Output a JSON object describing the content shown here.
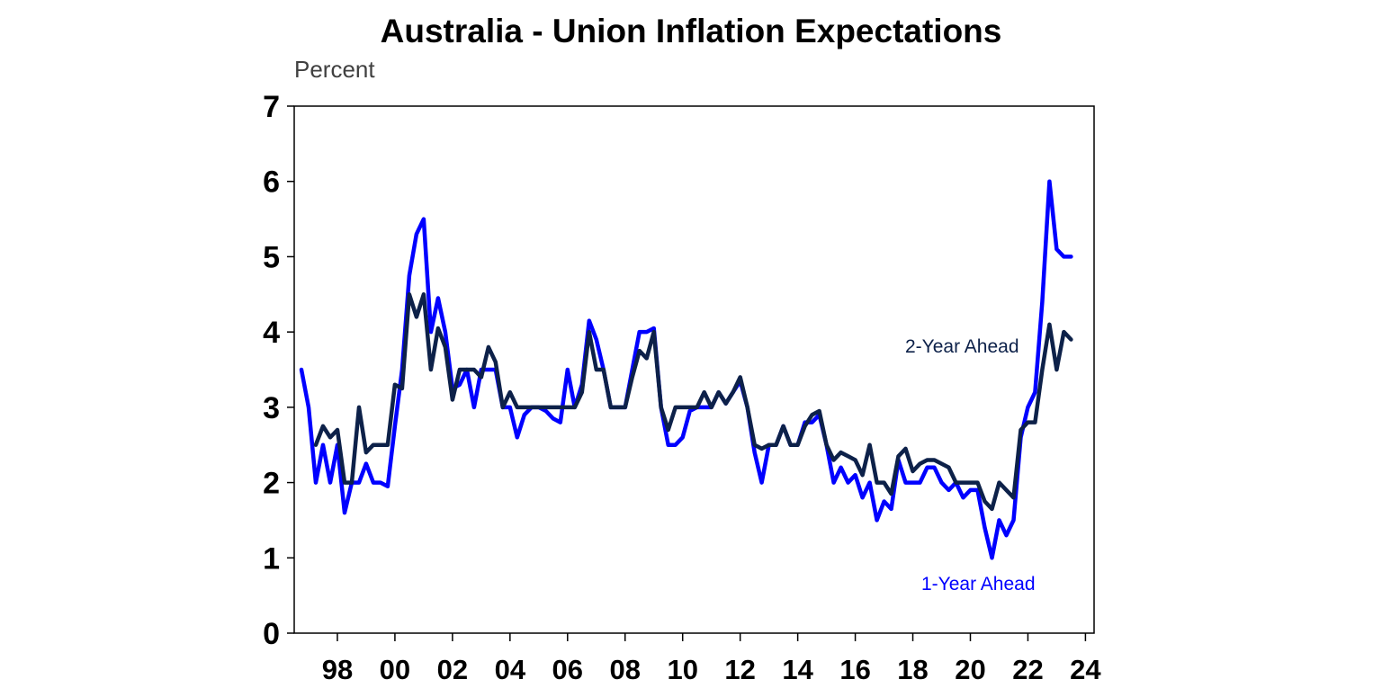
{
  "chart_data": {
    "type": "line",
    "title": "Australia - Union Inflation Expectations",
    "y_unit": "Percent",
    "xlabel": "",
    "ylabel": "",
    "xlim": [
      1996.5,
      2024.3
    ],
    "ylim": [
      0,
      7
    ],
    "y_ticks": [
      0,
      1,
      2,
      3,
      4,
      5,
      6,
      7
    ],
    "x_ticks": [
      {
        "value": 1998,
        "label": "98"
      },
      {
        "value": 2000,
        "label": "00"
      },
      {
        "value": 2002,
        "label": "02"
      },
      {
        "value": 2004,
        "label": "04"
      },
      {
        "value": 2006,
        "label": "06"
      },
      {
        "value": 2008,
        "label": "08"
      },
      {
        "value": 2010,
        "label": "10"
      },
      {
        "value": 2012,
        "label": "12"
      },
      {
        "value": 2014,
        "label": "14"
      },
      {
        "value": 2016,
        "label": "16"
      },
      {
        "value": 2018,
        "label": "18"
      },
      {
        "value": 2020,
        "label": "20"
      },
      {
        "value": 2022,
        "label": "22"
      },
      {
        "value": 2024,
        "label": "24"
      }
    ],
    "grid": false,
    "series": [
      {
        "name": "1-Year Ahead",
        "color": "#0000FF",
        "points": [
          [
            1996.75,
            3.5
          ],
          [
            1997.0,
            3.0
          ],
          [
            1997.25,
            2.0
          ],
          [
            1997.5,
            2.5
          ],
          [
            1997.75,
            2.0
          ],
          [
            1998.0,
            2.5
          ],
          [
            1998.25,
            1.6
          ],
          [
            1998.5,
            2.0
          ],
          [
            1998.75,
            2.0
          ],
          [
            1999.0,
            2.25
          ],
          [
            1999.25,
            2.0
          ],
          [
            1999.5,
            2.0
          ],
          [
            1999.75,
            1.95
          ],
          [
            2000.0,
            2.75
          ],
          [
            2000.25,
            3.5
          ],
          [
            2000.5,
            4.75
          ],
          [
            2000.75,
            5.3
          ],
          [
            2001.0,
            5.5
          ],
          [
            2001.25,
            4.0
          ],
          [
            2001.5,
            4.45
          ],
          [
            2001.75,
            4.0
          ],
          [
            2002.0,
            3.25
          ],
          [
            2002.25,
            3.3
          ],
          [
            2002.5,
            3.5
          ],
          [
            2002.75,
            3.0
          ],
          [
            2003.0,
            3.5
          ],
          [
            2003.25,
            3.5
          ],
          [
            2003.5,
            3.5
          ],
          [
            2003.75,
            3.0
          ],
          [
            2004.0,
            3.0
          ],
          [
            2004.25,
            2.6
          ],
          [
            2004.5,
            2.9
          ],
          [
            2004.75,
            3.0
          ],
          [
            2005.0,
            3.0
          ],
          [
            2005.25,
            2.95
          ],
          [
            2005.5,
            2.85
          ],
          [
            2005.75,
            2.8
          ],
          [
            2006.0,
            3.5
          ],
          [
            2006.25,
            3.0
          ],
          [
            2006.5,
            3.3
          ],
          [
            2006.75,
            4.15
          ],
          [
            2007.0,
            3.9
          ],
          [
            2007.25,
            3.5
          ],
          [
            2007.5,
            3.0
          ],
          [
            2007.75,
            3.0
          ],
          [
            2008.0,
            3.0
          ],
          [
            2008.25,
            3.5
          ],
          [
            2008.5,
            4.0
          ],
          [
            2008.75,
            4.0
          ],
          [
            2009.0,
            4.05
          ],
          [
            2009.25,
            3.0
          ],
          [
            2009.5,
            2.5
          ],
          [
            2009.75,
            2.5
          ],
          [
            2010.0,
            2.6
          ],
          [
            2010.25,
            2.95
          ],
          [
            2010.5,
            3.0
          ],
          [
            2010.75,
            3.0
          ],
          [
            2011.0,
            3.0
          ],
          [
            2011.25,
            3.2
          ],
          [
            2011.5,
            3.05
          ],
          [
            2011.75,
            3.2
          ],
          [
            2012.0,
            3.35
          ],
          [
            2012.25,
            3.0
          ],
          [
            2012.5,
            2.4
          ],
          [
            2012.75,
            2.0
          ],
          [
            2013.0,
            2.5
          ],
          [
            2013.25,
            2.5
          ],
          [
            2013.5,
            2.75
          ],
          [
            2013.75,
            2.5
          ],
          [
            2014.0,
            2.5
          ],
          [
            2014.25,
            2.8
          ],
          [
            2014.5,
            2.8
          ],
          [
            2014.75,
            2.9
          ],
          [
            2015.0,
            2.5
          ],
          [
            2015.25,
            2.0
          ],
          [
            2015.5,
            2.2
          ],
          [
            2015.75,
            2.0
          ],
          [
            2016.0,
            2.1
          ],
          [
            2016.25,
            1.8
          ],
          [
            2016.5,
            2.0
          ],
          [
            2016.75,
            1.5
          ],
          [
            2017.0,
            1.75
          ],
          [
            2017.25,
            1.65
          ],
          [
            2017.5,
            2.3
          ],
          [
            2017.75,
            2.0
          ],
          [
            2018.0,
            2.0
          ],
          [
            2018.25,
            2.0
          ],
          [
            2018.5,
            2.2
          ],
          [
            2018.75,
            2.2
          ],
          [
            2019.0,
            2.0
          ],
          [
            2019.25,
            1.9
          ],
          [
            2019.5,
            2.0
          ],
          [
            2019.75,
            1.8
          ],
          [
            2020.0,
            1.9
          ],
          [
            2020.25,
            1.9
          ],
          [
            2020.5,
            1.4
          ],
          [
            2020.75,
            1.0
          ],
          [
            2021.0,
            1.5
          ],
          [
            2021.25,
            1.3
          ],
          [
            2021.5,
            1.5
          ],
          [
            2021.75,
            2.6
          ],
          [
            2022.0,
            3.0
          ],
          [
            2022.25,
            3.2
          ],
          [
            2022.5,
            4.4
          ],
          [
            2022.75,
            6.0
          ],
          [
            2023.0,
            5.1
          ],
          [
            2023.25,
            5.0
          ],
          [
            2023.5,
            5.0
          ]
        ]
      },
      {
        "name": "2-Year Ahead",
        "color": "#0D2149",
        "points": [
          [
            1997.25,
            2.5
          ],
          [
            1997.5,
            2.75
          ],
          [
            1997.75,
            2.6
          ],
          [
            1998.0,
            2.7
          ],
          [
            1998.25,
            2.0
          ],
          [
            1998.5,
            2.0
          ],
          [
            1998.75,
            3.0
          ],
          [
            1999.0,
            2.4
          ],
          [
            1999.25,
            2.5
          ],
          [
            1999.5,
            2.5
          ],
          [
            1999.75,
            2.5
          ],
          [
            2000.0,
            3.3
          ],
          [
            2000.25,
            3.25
          ],
          [
            2000.5,
            4.5
          ],
          [
            2000.75,
            4.2
          ],
          [
            2001.0,
            4.5
          ],
          [
            2001.25,
            3.5
          ],
          [
            2001.5,
            4.05
          ],
          [
            2001.75,
            3.8
          ],
          [
            2002.0,
            3.1
          ],
          [
            2002.25,
            3.5
          ],
          [
            2002.5,
            3.5
          ],
          [
            2002.75,
            3.5
          ],
          [
            2003.0,
            3.4
          ],
          [
            2003.25,
            3.8
          ],
          [
            2003.5,
            3.6
          ],
          [
            2003.75,
            3.0
          ],
          [
            2004.0,
            3.2
          ],
          [
            2004.25,
            3.0
          ],
          [
            2004.5,
            3.0
          ],
          [
            2004.75,
            3.0
          ],
          [
            2005.0,
            3.0
          ],
          [
            2005.25,
            3.0
          ],
          [
            2005.5,
            3.0
          ],
          [
            2005.75,
            3.0
          ],
          [
            2006.0,
            3.0
          ],
          [
            2006.25,
            3.0
          ],
          [
            2006.5,
            3.2
          ],
          [
            2006.75,
            4.0
          ],
          [
            2007.0,
            3.5
          ],
          [
            2007.25,
            3.5
          ],
          [
            2007.5,
            3.0
          ],
          [
            2007.75,
            3.0
          ],
          [
            2008.0,
            3.0
          ],
          [
            2008.25,
            3.4
          ],
          [
            2008.5,
            3.75
          ],
          [
            2008.75,
            3.65
          ],
          [
            2009.0,
            4.0
          ],
          [
            2009.25,
            3.0
          ],
          [
            2009.5,
            2.7
          ],
          [
            2009.75,
            3.0
          ],
          [
            2010.0,
            3.0
          ],
          [
            2010.25,
            3.0
          ],
          [
            2010.5,
            3.0
          ],
          [
            2010.75,
            3.2
          ],
          [
            2011.0,
            3.0
          ],
          [
            2011.25,
            3.2
          ],
          [
            2011.5,
            3.05
          ],
          [
            2011.75,
            3.2
          ],
          [
            2012.0,
            3.4
          ],
          [
            2012.25,
            3.0
          ],
          [
            2012.5,
            2.5
          ],
          [
            2012.75,
            2.45
          ],
          [
            2013.0,
            2.5
          ],
          [
            2013.25,
            2.5
          ],
          [
            2013.5,
            2.75
          ],
          [
            2013.75,
            2.5
          ],
          [
            2014.0,
            2.5
          ],
          [
            2014.25,
            2.75
          ],
          [
            2014.5,
            2.9
          ],
          [
            2014.75,
            2.95
          ],
          [
            2015.0,
            2.5
          ],
          [
            2015.25,
            2.3
          ],
          [
            2015.5,
            2.4
          ],
          [
            2015.75,
            2.35
          ],
          [
            2016.0,
            2.3
          ],
          [
            2016.25,
            2.1
          ],
          [
            2016.5,
            2.5
          ],
          [
            2016.75,
            2.0
          ],
          [
            2017.0,
            2.0
          ],
          [
            2017.25,
            1.85
          ],
          [
            2017.5,
            2.35
          ],
          [
            2017.75,
            2.45
          ],
          [
            2018.0,
            2.15
          ],
          [
            2018.25,
            2.25
          ],
          [
            2018.5,
            2.3
          ],
          [
            2018.75,
            2.3
          ],
          [
            2019.0,
            2.25
          ],
          [
            2019.25,
            2.2
          ],
          [
            2019.5,
            2.0
          ],
          [
            2019.75,
            2.0
          ],
          [
            2020.0,
            2.0
          ],
          [
            2020.25,
            2.0
          ],
          [
            2020.5,
            1.75
          ],
          [
            2020.75,
            1.65
          ],
          [
            2021.0,
            2.0
          ],
          [
            2021.25,
            1.9
          ],
          [
            2021.5,
            1.8
          ],
          [
            2021.75,
            2.7
          ],
          [
            2022.0,
            2.8
          ],
          [
            2022.25,
            2.8
          ],
          [
            2022.5,
            3.5
          ],
          [
            2022.75,
            4.1
          ],
          [
            2023.0,
            3.5
          ],
          [
            2023.25,
            4.0
          ],
          [
            2023.5,
            3.9
          ]
        ]
      }
    ]
  }
}
